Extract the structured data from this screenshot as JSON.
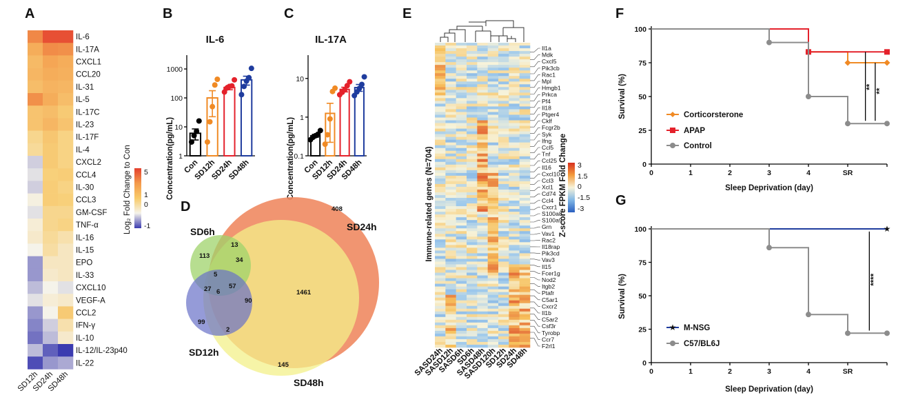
{
  "colors": {
    "hm_low": "#3b3bb0",
    "hm_mid": "#f5f3ea",
    "hm_high": "#e4402e",
    "con": "#000000",
    "sd12": "#f08a24",
    "sd24": "#e4212b",
    "sd48": "#1f3c9e",
    "cort": "#f08a24",
    "apap": "#e4212b",
    "ctrl": "#8c8c8c",
    "mnsg": "#1f3c9e",
    "venn_sd24": "#ef8a62",
    "venn_sd48": "#f3f08a",
    "venn_sd6": "#9fd36b",
    "venn_sd12": "#6870c8"
  },
  "panelA": {
    "label": "A",
    "genes": [
      "IL-6",
      "IL-17A",
      "CXCL1",
      "CCL20",
      "IL-31",
      "IL-5",
      "IL-17C",
      "IL-23",
      "IL-17F",
      "IL-4",
      "CXCL2",
      "CCL4",
      "IL-30",
      "CCL3",
      "GM-CSF",
      "TNF-α",
      "IL-16",
      "IL-15",
      "EPO",
      "IL-33",
      "CXCL10",
      "VEGF-A",
      "CCL2",
      "IFN-γ",
      "IL-10",
      "IL-12/IL-23p40",
      "IL-22"
    ],
    "columns": [
      "SD12h",
      "SD24h",
      "SD48h"
    ],
    "values": [
      [
        3.2,
        4.6,
        4.6
      ],
      [
        2.2,
        3.1,
        3.0
      ],
      [
        1.8,
        2.4,
        2.2
      ],
      [
        1.9,
        2.2,
        2.1
      ],
      [
        1.7,
        2.0,
        1.9
      ],
      [
        3.0,
        2.2,
        1.7
      ],
      [
        1.5,
        1.7,
        1.3
      ],
      [
        1.5,
        1.9,
        1.5
      ],
      [
        0.9,
        1.4,
        1.0
      ],
      [
        0.8,
        1.3,
        1.0
      ],
      [
        -0.2,
        1.3,
        1.0
      ],
      [
        -0.1,
        1.1,
        1.2
      ],
      [
        -0.2,
        1.2,
        1.0
      ],
      [
        0.1,
        1.2,
        1.1
      ],
      [
        -0.1,
        0.9,
        0.9
      ],
      [
        0.2,
        0.9,
        1.0
      ],
      [
        0.3,
        0.8,
        0.6
      ],
      [
        0.0,
        0.7,
        0.4
      ],
      [
        -0.5,
        0.4,
        0.4
      ],
      [
        -0.5,
        0.3,
        0.4
      ],
      [
        -0.3,
        0.0,
        -0.1
      ],
      [
        -0.1,
        0.2,
        0.3
      ],
      [
        -0.5,
        0.0,
        1.3
      ],
      [
        -0.6,
        -0.2,
        0.6
      ],
      [
        -0.7,
        -0.3,
        0.3
      ],
      [
        -0.3,
        -0.8,
        -1.0
      ],
      [
        -0.9,
        -0.5,
        -0.4
      ]
    ],
    "legend_title": "Log₂ Fold Change to Con",
    "legend_ticks": [
      "5",
      "1",
      "0",
      "-1"
    ]
  },
  "panelB": {
    "label": "B",
    "title": "IL-6",
    "ylabel": "Concentration(pg/mL)",
    "categories": [
      "Con",
      "SD12h",
      "SD24h",
      "SD48h"
    ],
    "ticks": [
      "1",
      "10",
      "100",
      "1000"
    ],
    "ylim": [
      1,
      3000
    ],
    "means": [
      6,
      100,
      230,
      420
    ],
    "points": [
      [
        3,
        5,
        7,
        16
      ],
      [
        3,
        15,
        50,
        280,
        440
      ],
      [
        160,
        220,
        250,
        260,
        420
      ],
      [
        130,
        250,
        380,
        500,
        1050
      ]
    ]
  },
  "panelC": {
    "label": "C",
    "title": "IL-17A",
    "ylabel": "Concentration(pg/mL)",
    "categories": [
      "Con",
      "SD12h",
      "SD24h",
      "SD48h"
    ],
    "ticks": [
      "0.1",
      "1",
      "10"
    ],
    "ylim": [
      0.1,
      40
    ],
    "means": [
      0.33,
      1.25,
      5.2,
      5.8
    ],
    "points": [
      [
        0.26,
        0.3,
        0.33,
        0.36,
        0.45
      ],
      [
        0.2,
        0.35,
        0.9,
        4.6,
        5.6
      ],
      [
        3.8,
        4.4,
        5.1,
        6.5,
        8.2
      ],
      [
        3.6,
        4.5,
        5.5,
        7.0,
        11.0
      ]
    ]
  },
  "panelD": {
    "label": "D",
    "sets": [
      "SD6h",
      "SD12h",
      "SD24h",
      "SD48h"
    ],
    "counts": [
      "408",
      "145",
      "113",
      "99",
      "13",
      "34",
      "5",
      "27",
      "6",
      "57",
      "90",
      "1461",
      "2"
    ]
  },
  "panelE": {
    "label": "E",
    "ylabel": "Immune-related genes (N=704)",
    "columns": [
      "SASD24h",
      "SASD12h",
      "SASD6h",
      "SD6h",
      "SASD48h",
      "SASD120h",
      "SD12h",
      "SD24h",
      "SD48h"
    ],
    "genes": [
      "Il1a",
      "Mdk",
      "Cxcl5",
      "Pik3cb",
      "Rac1",
      "Mpl",
      "Hmgb1",
      "Prkca",
      "Pf4",
      "Il18",
      "Ptger4",
      "Cklf",
      "Fcgr2b",
      "Syk",
      "Ifng",
      "Ccl5",
      "Tnf",
      "Ccl25",
      "Il16",
      "Cxcl10",
      "Ccl3",
      "Xcl1",
      "Cd74",
      "Ccl4",
      "Cxcr1",
      "S100a8",
      "S100a9",
      "Grn",
      "Vav1",
      "Rac2",
      "Il18rap",
      "Pik3cd",
      "Vav3",
      "Il15",
      "Fcer1g",
      "Nod2",
      "Itgb2",
      "Ptafr",
      "C5ar1",
      "Cxcr2",
      "Il1b",
      "C5ar2",
      "Csf3r",
      "Tyrobp",
      "Ccr7",
      "F2rl1"
    ],
    "legend_title": "Z-score FPKM Fold Change",
    "legend_ticks": [
      "3",
      "1.5",
      "0",
      "-1.5",
      "-3"
    ]
  },
  "panelF": {
    "label": "F",
    "ylabel": "Survival (%)",
    "xlabel": "Sleep Deprivation (day)",
    "xticks": [
      "0",
      "1",
      "2",
      "3",
      "4",
      "SR"
    ],
    "yticks": [
      "0",
      "25",
      "50",
      "75",
      "100"
    ],
    "series": [
      {
        "name": "Corticorsterone",
        "steps": [
          [
            0,
            100
          ],
          [
            4,
            100
          ],
          [
            4,
            83
          ],
          [
            5,
            83
          ],
          [
            5,
            75
          ],
          [
            6,
            75
          ]
        ]
      },
      {
        "name": "APAP",
        "steps": [
          [
            0,
            100
          ],
          [
            4,
            100
          ],
          [
            4,
            83
          ],
          [
            6,
            83
          ]
        ]
      },
      {
        "name": "Control",
        "steps": [
          [
            0,
            100
          ],
          [
            3,
            100
          ],
          [
            3,
            90
          ],
          [
            4,
            90
          ],
          [
            4,
            50
          ],
          [
            5,
            50
          ],
          [
            5,
            30
          ],
          [
            6,
            30
          ]
        ]
      }
    ],
    "sig": [
      "**",
      "**"
    ]
  },
  "panelG": {
    "label": "G",
    "ylabel": "Survival (%)",
    "xlabel": "Sleep Deprivation (day)",
    "xticks": [
      "0",
      "1",
      "2",
      "3",
      "4",
      "SR"
    ],
    "yticks": [
      "0",
      "25",
      "50",
      "75",
      "100"
    ],
    "series": [
      {
        "name": "M-NSG",
        "steps": [
          [
            0,
            100
          ],
          [
            6,
            100
          ]
        ]
      },
      {
        "name": "C57/BL6J",
        "steps": [
          [
            0,
            100
          ],
          [
            3,
            100
          ],
          [
            3,
            86
          ],
          [
            4,
            86
          ],
          [
            4,
            36
          ],
          [
            5,
            36
          ],
          [
            5,
            22
          ],
          [
            6,
            22
          ]
        ]
      }
    ],
    "sig": [
      "****"
    ]
  },
  "chart_data": [
    {
      "type": "heatmap",
      "panel": "A",
      "rows": [
        "IL-6",
        "IL-17A",
        "CXCL1",
        "CCL20",
        "IL-31",
        "IL-5",
        "IL-17C",
        "IL-23",
        "IL-17F",
        "IL-4",
        "CXCL2",
        "CCL4",
        "IL-30",
        "CCL3",
        "GM-CSF",
        "TNF-α",
        "IL-16",
        "IL-15",
        "EPO",
        "IL-33",
        "CXCL10",
        "VEGF-A",
        "CCL2",
        "IFN-γ",
        "IL-10",
        "IL-12/IL-23p40",
        "IL-22"
      ],
      "columns": [
        "SD12h",
        "SD24h",
        "SD48h"
      ],
      "colorbar": "Log₂ Fold Change to Con",
      "color_range": [
        -1,
        5
      ]
    },
    {
      "type": "bar",
      "panel": "B",
      "title": "IL-6",
      "categories": [
        "Con",
        "SD12h",
        "SD24h",
        "SD48h"
      ],
      "values": [
        6,
        100,
        230,
        420
      ],
      "ylabel": "Concentration(pg/mL)",
      "yscale": "log",
      "ylim": [
        1,
        3000
      ]
    },
    {
      "type": "bar",
      "panel": "C",
      "title": "IL-17A",
      "categories": [
        "Con",
        "SD12h",
        "SD24h",
        "SD48h"
      ],
      "values": [
        0.33,
        1.25,
        5.2,
        5.8
      ],
      "ylabel": "Concentration(pg/mL)",
      "yscale": "log",
      "ylim": [
        0.1,
        40
      ]
    },
    {
      "type": "venn",
      "panel": "D",
      "sets": [
        "SD6h",
        "SD12h",
        "SD24h",
        "SD48h"
      ],
      "region_counts": [
        408,
        145,
        113,
        99,
        13,
        34,
        5,
        27,
        6,
        57,
        90,
        1461,
        2
      ]
    },
    {
      "type": "heatmap",
      "panel": "E",
      "ylabel": "Immune-related genes (N=704)",
      "columns": [
        "SASD24h",
        "SASD12h",
        "SASD6h",
        "SD6h",
        "SASD48h",
        "SASD120h",
        "SD12h",
        "SD24h",
        "SD48h"
      ],
      "colorbar": "Z-score FPKM Fold Change",
      "color_range": [
        -3,
        3
      ]
    },
    {
      "type": "line",
      "panel": "F",
      "xlabel": "Sleep Deprivation (day)",
      "ylabel": "Survival (%)",
      "x": [
        "0",
        "1",
        "2",
        "3",
        "4",
        "SR"
      ],
      "series": [
        {
          "name": "Corticorsterone",
          "values": [
            100,
            100,
            100,
            100,
            83,
            75
          ]
        },
        {
          "name": "APAP",
          "values": [
            100,
            100,
            100,
            100,
            83,
            83
          ]
        },
        {
          "name": "Control",
          "values": [
            100,
            100,
            100,
            90,
            50,
            30
          ]
        }
      ],
      "ylim": [
        0,
        100
      ]
    },
    {
      "type": "line",
      "panel": "G",
      "xlabel": "Sleep Deprivation (day)",
      "ylabel": "Survival (%)",
      "x": [
        "0",
        "1",
        "2",
        "3",
        "4",
        "SR"
      ],
      "series": [
        {
          "name": "M-NSG",
          "values": [
            100,
            100,
            100,
            100,
            100,
            100
          ]
        },
        {
          "name": "C57/BL6J",
          "values": [
            100,
            100,
            100,
            86,
            36,
            22
          ]
        }
      ],
      "ylim": [
        0,
        100
      ]
    }
  ]
}
